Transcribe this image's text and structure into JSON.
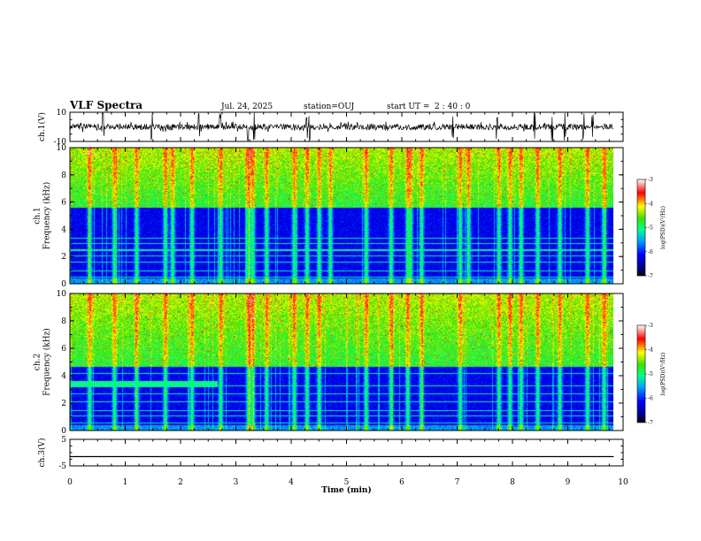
{
  "header": {
    "title": "VLF Spectra",
    "date": "Jul. 24, 2025",
    "station": "station=OUJ",
    "start_label": "start UT =",
    "start_time": "2 : 40 : 0"
  },
  "chart_data": [
    {
      "type": "line",
      "name": "ch1-waveform",
      "ylabel": "ch.1(V)",
      "ylim": [
        -10,
        10
      ],
      "yticks": [
        "10",
        "-10"
      ],
      "xlim": [
        0,
        10
      ],
      "data_end": 9.83,
      "baseline": 0,
      "typical_amplitude": 2,
      "burst_times": [
        0.6,
        1.48,
        2.33,
        2.72,
        3.22,
        3.33,
        4.28,
        4.33,
        6.92,
        7.72,
        8.4,
        8.72,
        8.95,
        9.28,
        9.45
      ]
    },
    {
      "type": "heatmap",
      "name": "ch1-spectrogram",
      "ylabel": "ch.1\nFrequency (kHz)",
      "ylabel_lines": [
        "ch.1",
        "Frequency (kHz)"
      ],
      "ylim": [
        0,
        10
      ],
      "yticks": [
        "0",
        "2",
        "4",
        "6",
        "8",
        "10"
      ],
      "xlim": [
        0,
        10
      ],
      "data_end": 9.83,
      "colorbar": {
        "label": "log(PSD)(V²/Hz)",
        "range": [
          -7,
          -3
        ],
        "ticks": [
          "-3",
          "-4",
          "-5",
          "-6",
          "-7"
        ]
      },
      "upper_band_lower_edge_khz": 5.6,
      "hum_lines_khz": [
        0.5,
        1.0,
        1.6,
        2.05,
        2.5,
        3.0,
        3.4
      ],
      "sferic_times": [
        0.35,
        0.8,
        1.2,
        1.72,
        1.85,
        2.2,
        2.72,
        3.22,
        3.3,
        3.55,
        4.05,
        4.28,
        4.5,
        4.7,
        5.35,
        5.8,
        6.1,
        6.15,
        6.35,
        7.05,
        7.2,
        7.75,
        7.95,
        8.15,
        8.45,
        8.85,
        9.35,
        9.65
      ]
    },
    {
      "type": "heatmap",
      "name": "ch2-spectrogram",
      "ylabel": "ch.2\nFrequency (kHz)",
      "ylabel_lines": [
        "ch.2",
        "Frequency (kHz)"
      ],
      "ylim": [
        0,
        10
      ],
      "yticks": [
        "0",
        "2",
        "4",
        "6",
        "8",
        "10"
      ],
      "xlim": [
        0,
        10
      ],
      "data_end": 9.83,
      "colorbar": {
        "label": "log(PSD)(V²/Hz)",
        "range": [
          -7,
          -3
        ],
        "ticks": [
          "-3",
          "-4",
          "-5",
          "-6",
          "-7"
        ]
      },
      "upper_band_lower_edge_khz": 4.7,
      "interference_band": {
        "freq_khz": 3.4,
        "t_start": 0,
        "t_end": 2.67
      },
      "hum_lines_khz": [
        0.6,
        1.1,
        1.5,
        2.1,
        2.7,
        3.3,
        4.2
      ],
      "sferic_times": [
        0.35,
        0.8,
        1.2,
        1.72,
        2.2,
        2.72,
        3.22,
        3.3,
        3.55,
        4.05,
        4.28,
        4.5,
        5.35,
        5.8,
        6.1,
        6.35,
        7.05,
        7.75,
        7.95,
        8.15,
        8.45,
        8.85,
        9.35,
        9.65
      ]
    },
    {
      "type": "line",
      "name": "ch3-waveform",
      "ylabel": "ch.3(V)",
      "ylim": [
        -5,
        5
      ],
      "yticks": [
        "5",
        "-5"
      ],
      "xlim": [
        0,
        10
      ],
      "data_end": 9.83,
      "constant_value": -1.5
    }
  ],
  "xaxis": {
    "label": "Time (min)",
    "range": [
      0,
      10
    ],
    "ticks": [
      "0",
      "1",
      "2",
      "3",
      "4",
      "5",
      "6",
      "7",
      "8",
      "9",
      "10"
    ]
  }
}
